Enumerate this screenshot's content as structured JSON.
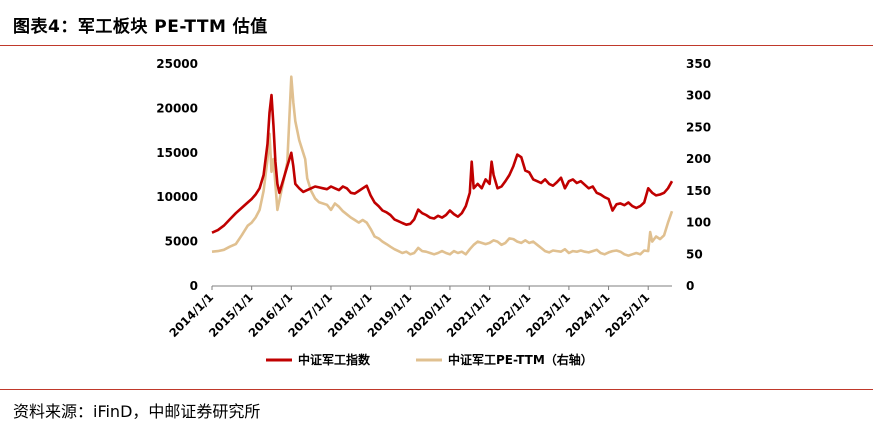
{
  "header": {
    "title": "图表4：军工板块 PE-TTM 估值"
  },
  "footer": {
    "source": "资料来源：iFinD，中邮证券研究所"
  },
  "colors": {
    "accent": "#c0392b",
    "series_index": "#c00000",
    "series_pe": "#e0c090"
  },
  "chart_data": {
    "type": "line",
    "x_tick_labels": [
      "2014/1/1",
      "2015/1/1",
      "2016/1/1",
      "2017/1/1",
      "2018/1/1",
      "2019/1/1",
      "2020/1/1",
      "2021/1/1",
      "2022/1/1",
      "2023/1/1",
      "2024/1/1",
      "2025/1/1"
    ],
    "y_left": {
      "ticks": [
        "0",
        "5000",
        "10000",
        "15000",
        "20000",
        "25000"
      ],
      "range": [
        0,
        25000
      ]
    },
    "y_right": {
      "ticks": [
        "0",
        "50",
        "100",
        "150",
        "200",
        "250",
        "300",
        "350"
      ],
      "range": [
        0,
        350
      ]
    },
    "legend": {
      "position": "bottom"
    },
    "x_range": [
      2014.0,
      2025.6
    ],
    "series": [
      {
        "name": "中证军工指数",
        "axis": "left",
        "color": "#c00000",
        "x": [
          2014.0,
          2014.15,
          2014.3,
          2014.45,
          2014.6,
          2014.75,
          2014.9,
          2015.0,
          2015.1,
          2015.2,
          2015.3,
          2015.4,
          2015.45,
          2015.5,
          2015.55,
          2015.6,
          2015.65,
          2015.7,
          2015.8,
          2015.9,
          2016.0,
          2016.05,
          2016.1,
          2016.2,
          2016.3,
          2016.4,
          2016.5,
          2016.6,
          2016.7,
          2016.8,
          2016.9,
          2017.0,
          2017.1,
          2017.2,
          2017.3,
          2017.4,
          2017.5,
          2017.6,
          2017.7,
          2017.8,
          2017.9,
          2018.0,
          2018.1,
          2018.2,
          2018.3,
          2018.4,
          2018.5,
          2018.6,
          2018.7,
          2018.8,
          2018.9,
          2019.0,
          2019.1,
          2019.2,
          2019.3,
          2019.4,
          2019.5,
          2019.6,
          2019.7,
          2019.8,
          2019.9,
          2020.0,
          2020.1,
          2020.2,
          2020.3,
          2020.4,
          2020.5,
          2020.55,
          2020.6,
          2020.7,
          2020.8,
          2020.9,
          2021.0,
          2021.05,
          2021.1,
          2021.2,
          2021.3,
          2021.4,
          2021.5,
          2021.6,
          2021.7,
          2021.8,
          2021.9,
          2022.0,
          2022.1,
          2022.2,
          2022.3,
          2022.4,
          2022.5,
          2022.6,
          2022.7,
          2022.8,
          2022.9,
          2023.0,
          2023.1,
          2023.2,
          2023.3,
          2023.4,
          2023.5,
          2023.6,
          2023.7,
          2023.8,
          2023.9,
          2024.0,
          2024.1,
          2024.2,
          2024.3,
          2024.4,
          2024.5,
          2024.6,
          2024.7,
          2024.8,
          2024.9,
          2025.0,
          2025.1,
          2025.2,
          2025.3,
          2025.4,
          2025.5,
          2025.6
        ],
        "values": [
          6000,
          6300,
          6800,
          7500,
          8200,
          8800,
          9400,
          9800,
          10300,
          11000,
          12500,
          16000,
          19500,
          21500,
          18000,
          14000,
          11500,
          10500,
          12000,
          13500,
          15000,
          13500,
          11500,
          11000,
          10600,
          10800,
          11000,
          11200,
          11100,
          11000,
          10900,
          11200,
          11000,
          10800,
          11200,
          11000,
          10500,
          10400,
          10700,
          11000,
          11300,
          10200,
          9400,
          9000,
          8500,
          8300,
          8000,
          7500,
          7300,
          7100,
          6900,
          7000,
          7500,
          8600,
          8200,
          8000,
          7700,
          7600,
          7900,
          7700,
          8000,
          8500,
          8100,
          7800,
          8200,
          9000,
          10500,
          14000,
          11000,
          11500,
          11000,
          12000,
          11500,
          14000,
          12500,
          11000,
          11200,
          11800,
          12500,
          13500,
          14800,
          14500,
          13000,
          12800,
          12000,
          11800,
          11600,
          12000,
          11500,
          11300,
          11700,
          12200,
          11000,
          11800,
          12000,
          11600,
          11800,
          11400,
          11000,
          11200,
          10500,
          10300,
          10000,
          9800,
          8500,
          9200,
          9300,
          9100,
          9400,
          9000,
          8800,
          9000,
          9400,
          11000,
          10500,
          10200,
          10300,
          10500,
          11000,
          11800
        ]
      },
      {
        "name": "中证军工PE-TTM（右轴）",
        "axis": "right",
        "color": "#e0c090",
        "x": [
          2014.0,
          2014.15,
          2014.3,
          2014.45,
          2014.6,
          2014.75,
          2014.9,
          2015.0,
          2015.1,
          2015.2,
          2015.3,
          2015.4,
          2015.45,
          2015.5,
          2015.55,
          2015.6,
          2015.65,
          2015.7,
          2015.8,
          2015.9,
          2016.0,
          2016.05,
          2016.1,
          2016.2,
          2016.3,
          2016.35,
          2016.4,
          2016.5,
          2016.6,
          2016.7,
          2016.8,
          2016.9,
          2017.0,
          2017.1,
          2017.2,
          2017.3,
          2017.4,
          2017.5,
          2017.6,
          2017.7,
          2017.8,
          2017.9,
          2018.0,
          2018.1,
          2018.2,
          2018.3,
          2018.4,
          2018.5,
          2018.6,
          2018.7,
          2018.8,
          2018.9,
          2019.0,
          2019.1,
          2019.2,
          2019.3,
          2019.4,
          2019.5,
          2019.6,
          2019.7,
          2019.8,
          2019.9,
          2020.0,
          2020.1,
          2020.2,
          2020.3,
          2020.4,
          2020.5,
          2020.6,
          2020.7,
          2020.8,
          2020.9,
          2021.0,
          2021.1,
          2021.2,
          2021.3,
          2021.4,
          2021.5,
          2021.6,
          2021.7,
          2021.8,
          2021.9,
          2022.0,
          2022.1,
          2022.2,
          2022.3,
          2022.4,
          2022.5,
          2022.6,
          2022.7,
          2022.8,
          2022.9,
          2023.0,
          2023.1,
          2023.2,
          2023.3,
          2023.4,
          2023.5,
          2023.6,
          2023.7,
          2023.8,
          2023.9,
          2024.0,
          2024.1,
          2024.2,
          2024.3,
          2024.4,
          2024.5,
          2024.6,
          2024.7,
          2024.8,
          2024.9,
          2025.0,
          2025.05,
          2025.1,
          2025.2,
          2025.3,
          2025.4,
          2025.5,
          2025.6
        ],
        "values": [
          54,
          55,
          57,
          62,
          66,
          80,
          95,
          100,
          108,
          120,
          150,
          200,
          240,
          180,
          200,
          160,
          120,
          135,
          165,
          195,
          330,
          290,
          260,
          230,
          210,
          200,
          170,
          150,
          138,
          132,
          130,
          128,
          120,
          130,
          125,
          118,
          113,
          108,
          104,
          100,
          104,
          100,
          90,
          78,
          75,
          70,
          66,
          62,
          58,
          55,
          52,
          54,
          50,
          52,
          60,
          55,
          54,
          52,
          50,
          52,
          55,
          52,
          50,
          55,
          52,
          54,
          50,
          58,
          65,
          70,
          68,
          66,
          68,
          72,
          70,
          65,
          68,
          75,
          74,
          70,
          68,
          72,
          68,
          70,
          65,
          60,
          55,
          53,
          56,
          55,
          54,
          58,
          52,
          55,
          54,
          56,
          54,
          53,
          55,
          57,
          52,
          50,
          53,
          55,
          56,
          54,
          50,
          48,
          50,
          52,
          50,
          56,
          55,
          85,
          70,
          78,
          74,
          80,
          100,
          118
        ]
      }
    ]
  }
}
